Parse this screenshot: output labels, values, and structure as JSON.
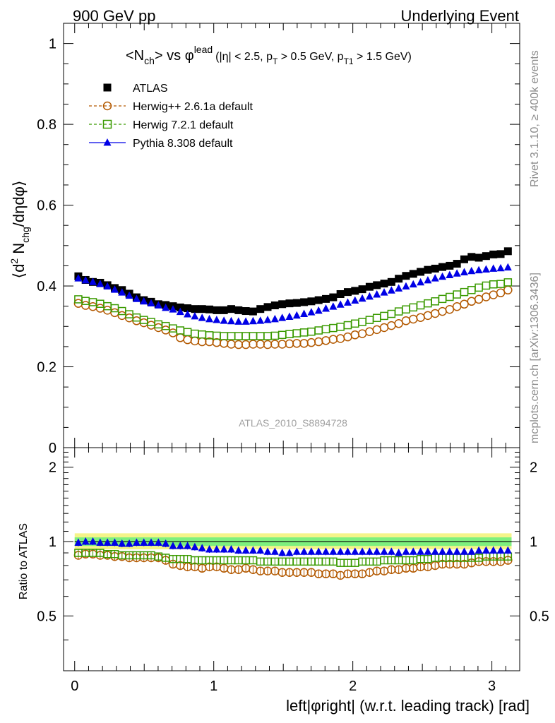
{
  "header": {
    "left": "900 GeV pp",
    "right": "Underlying Event"
  },
  "side_labels": {
    "rivet": "Rivet 3.1.10, ≥ 400k events",
    "mcplots": "mcplots.cern.ch [arXiv:1306.3436]"
  },
  "colors": {
    "atlas": "#000000",
    "herwigpp": "#b35900",
    "herwig7": "#3a9a00",
    "pythia": "#0000e6",
    "band_inner": "#7ef07e",
    "band_outer": "#f4f48a"
  },
  "chart_data": [
    {
      "type": "scatter",
      "panel": "main",
      "title": "<N_ch> vs φ^lead (|η| < 2.5, p_T > 0.5 GeV, p_T1 > 1.5 GeV)",
      "title_parts": {
        "main": "<N",
        "sub1": "ch",
        "mid": "> vs φ",
        "sup": "lead",
        "cut1": "(|η| < 2.5, p",
        "sub2": "T",
        "cut2": " > 0.5 GeV, p",
        "sub3": "T1",
        "cut3": " > 1.5 GeV)"
      },
      "ylabel": "⟨d² N_chg/dηdφ⟩",
      "ylabel_parts": {
        "a": "⟨d",
        "sup": "2",
        "b": " N",
        "sub": "chg",
        "c": "/dηdφ⟩"
      },
      "xlim": [
        -0.08,
        3.2
      ],
      "ylim": [
        0,
        1.05
      ],
      "yticks": [
        0,
        0.2,
        0.4,
        0.6,
        0.8,
        1
      ],
      "ytick_labels": [
        "0",
        "0.2",
        "0.4",
        "0.6",
        "0.8",
        "1"
      ],
      "watermark": "ATLAS_2010_S8894728",
      "legend_position": "top-left",
      "x": [
        0.0262,
        0.0785,
        0.1309,
        0.1833,
        0.2356,
        0.288,
        0.3403,
        0.3927,
        0.4451,
        0.4974,
        0.5498,
        0.6021,
        0.6545,
        0.7069,
        0.7592,
        0.8116,
        0.8639,
        0.9163,
        0.9687,
        1.021,
        1.0734,
        1.1257,
        1.1781,
        1.2305,
        1.2828,
        1.3352,
        1.3875,
        1.4399,
        1.4923,
        1.5446,
        1.597,
        1.6493,
        1.7017,
        1.7541,
        1.8064,
        1.8588,
        1.9111,
        1.9635,
        2.0159,
        2.0682,
        2.1206,
        2.1729,
        2.2253,
        2.2777,
        2.33,
        2.3824,
        2.4347,
        2.4871,
        2.5395,
        2.5918,
        2.6442,
        2.6965,
        2.7489,
        2.8013,
        2.8536,
        2.906,
        2.9583,
        3.0107,
        3.0631,
        3.1154
      ],
      "series": [
        {
          "name": "ATLAS",
          "marker": "filled-square",
          "values": [
            0.424,
            0.415,
            0.41,
            0.408,
            0.402,
            0.395,
            0.39,
            0.381,
            0.372,
            0.365,
            0.361,
            0.355,
            0.353,
            0.35,
            0.347,
            0.345,
            0.343,
            0.343,
            0.342,
            0.34,
            0.34,
            0.343,
            0.34,
            0.338,
            0.337,
            0.343,
            0.348,
            0.352,
            0.355,
            0.357,
            0.358,
            0.36,
            0.362,
            0.365,
            0.368,
            0.372,
            0.38,
            0.385,
            0.388,
            0.392,
            0.398,
            0.402,
            0.406,
            0.41,
            0.418,
            0.425,
            0.43,
            0.435,
            0.44,
            0.443,
            0.447,
            0.45,
            0.455,
            0.466,
            0.472,
            0.47,
            0.474,
            0.478,
            0.479,
            0.486
          ]
        },
        {
          "name": "Herwig++ 2.6.1a default",
          "marker": "open-circle",
          "values": [
            0.357,
            0.352,
            0.349,
            0.345,
            0.34,
            0.334,
            0.327,
            0.321,
            0.314,
            0.309,
            0.303,
            0.297,
            0.291,
            0.284,
            0.272,
            0.267,
            0.264,
            0.262,
            0.262,
            0.26,
            0.258,
            0.256,
            0.255,
            0.255,
            0.256,
            0.256,
            0.255,
            0.256,
            0.256,
            0.257,
            0.258,
            0.258,
            0.26,
            0.262,
            0.265,
            0.268,
            0.27,
            0.274,
            0.279,
            0.282,
            0.287,
            0.292,
            0.297,
            0.302,
            0.307,
            0.314,
            0.318,
            0.322,
            0.327,
            0.332,
            0.337,
            0.342,
            0.349,
            0.355,
            0.362,
            0.367,
            0.373,
            0.378,
            0.383,
            0.39
          ]
        },
        {
          "name": "Herwig 7.2.1 default",
          "marker": "open-square",
          "values": [
            0.367,
            0.363,
            0.36,
            0.356,
            0.35,
            0.345,
            0.338,
            0.33,
            0.322,
            0.316,
            0.311,
            0.305,
            0.301,
            0.295,
            0.29,
            0.286,
            0.282,
            0.28,
            0.278,
            0.277,
            0.276,
            0.276,
            0.276,
            0.276,
            0.276,
            0.276,
            0.276,
            0.277,
            0.279,
            0.281,
            0.283,
            0.285,
            0.287,
            0.29,
            0.293,
            0.296,
            0.299,
            0.303,
            0.307,
            0.311,
            0.316,
            0.321,
            0.326,
            0.331,
            0.337,
            0.342,
            0.347,
            0.352,
            0.357,
            0.362,
            0.368,
            0.373,
            0.379,
            0.385,
            0.39,
            0.396,
            0.401,
            0.404,
            0.405,
            0.409
          ]
        },
        {
          "name": "Pythia 8.308 default",
          "marker": "filled-triangle",
          "values": [
            0.419,
            0.414,
            0.41,
            0.405,
            0.399,
            0.391,
            0.384,
            0.376,
            0.368,
            0.362,
            0.357,
            0.352,
            0.346,
            0.342,
            0.336,
            0.33,
            0.325,
            0.321,
            0.318,
            0.316,
            0.314,
            0.313,
            0.312,
            0.312,
            0.313,
            0.314,
            0.316,
            0.318,
            0.321,
            0.324,
            0.327,
            0.331,
            0.335,
            0.339,
            0.344,
            0.349,
            0.354,
            0.359,
            0.364,
            0.369,
            0.374,
            0.379,
            0.384,
            0.389,
            0.394,
            0.399,
            0.404,
            0.409,
            0.414,
            0.419,
            0.423,
            0.427,
            0.431,
            0.434,
            0.437,
            0.439,
            0.441,
            0.443,
            0.444,
            0.446
          ]
        }
      ]
    },
    {
      "type": "scatter",
      "panel": "ratio",
      "ylabel": "Ratio to ATLAS",
      "xlabel": "left|φright| (w.r.t. leading track) [rad]",
      "xlim": [
        -0.08,
        3.2
      ],
      "ylim": [
        0.3,
        2.4
      ],
      "scale": "log",
      "xticks": [
        0,
        1,
        2,
        3
      ],
      "xtick_labels": [
        "0",
        "1",
        "2",
        "3"
      ],
      "yticks": [
        0.5,
        1,
        2
      ],
      "ytick_labels": [
        "0.5",
        "1",
        "2"
      ],
      "band_inner": [
        0.96,
        1.04
      ],
      "band_outer": [
        0.93,
        1.08
      ],
      "series": [
        {
          "name": "Herwig++ 2.6.1a default",
          "marker": "open-circle",
          "values": [
            0.88,
            0.89,
            0.89,
            0.88,
            0.88,
            0.87,
            0.87,
            0.86,
            0.86,
            0.86,
            0.86,
            0.86,
            0.84,
            0.81,
            0.8,
            0.79,
            0.79,
            0.78,
            0.79,
            0.79,
            0.78,
            0.77,
            0.77,
            0.78,
            0.77,
            0.76,
            0.76,
            0.76,
            0.75,
            0.75,
            0.75,
            0.75,
            0.75,
            0.74,
            0.74,
            0.74,
            0.73,
            0.74,
            0.74,
            0.74,
            0.75,
            0.76,
            0.76,
            0.77,
            0.77,
            0.78,
            0.78,
            0.79,
            0.79,
            0.8,
            0.81,
            0.81,
            0.81,
            0.81,
            0.82,
            0.83,
            0.83,
            0.83,
            0.83,
            0.84
          ]
        },
        {
          "name": "Herwig 7.2.1 default",
          "marker": "open-square",
          "values": [
            0.9,
            0.9,
            0.9,
            0.9,
            0.89,
            0.89,
            0.88,
            0.88,
            0.88,
            0.88,
            0.88,
            0.87,
            0.86,
            0.85,
            0.85,
            0.85,
            0.84,
            0.84,
            0.84,
            0.84,
            0.84,
            0.84,
            0.84,
            0.84,
            0.84,
            0.83,
            0.83,
            0.83,
            0.83,
            0.83,
            0.83,
            0.83,
            0.83,
            0.83,
            0.83,
            0.83,
            0.82,
            0.82,
            0.82,
            0.83,
            0.83,
            0.83,
            0.84,
            0.84,
            0.84,
            0.84,
            0.84,
            0.85,
            0.85,
            0.86,
            0.86,
            0.86,
            0.86,
            0.86,
            0.86,
            0.86,
            0.87,
            0.87,
            0.87,
            0.87
          ]
        },
        {
          "name": "Pythia 8.308 default",
          "marker": "filled-triangle",
          "values": [
            0.99,
            1.0,
            1.0,
            0.99,
            0.99,
            0.99,
            0.98,
            0.98,
            0.99,
            0.99,
            0.99,
            0.99,
            0.98,
            0.96,
            0.96,
            0.96,
            0.95,
            0.94,
            0.93,
            0.93,
            0.93,
            0.93,
            0.92,
            0.92,
            0.92,
            0.92,
            0.91,
            0.91,
            0.9,
            0.9,
            0.91,
            0.91,
            0.91,
            0.91,
            0.91,
            0.91,
            0.91,
            0.91,
            0.91,
            0.91,
            0.91,
            0.91,
            0.91,
            0.91,
            0.9,
            0.91,
            0.91,
            0.91,
            0.91,
            0.91,
            0.91,
            0.91,
            0.91,
            0.91,
            0.91,
            0.92,
            0.92,
            0.92,
            0.92,
            0.92
          ]
        }
      ]
    }
  ]
}
